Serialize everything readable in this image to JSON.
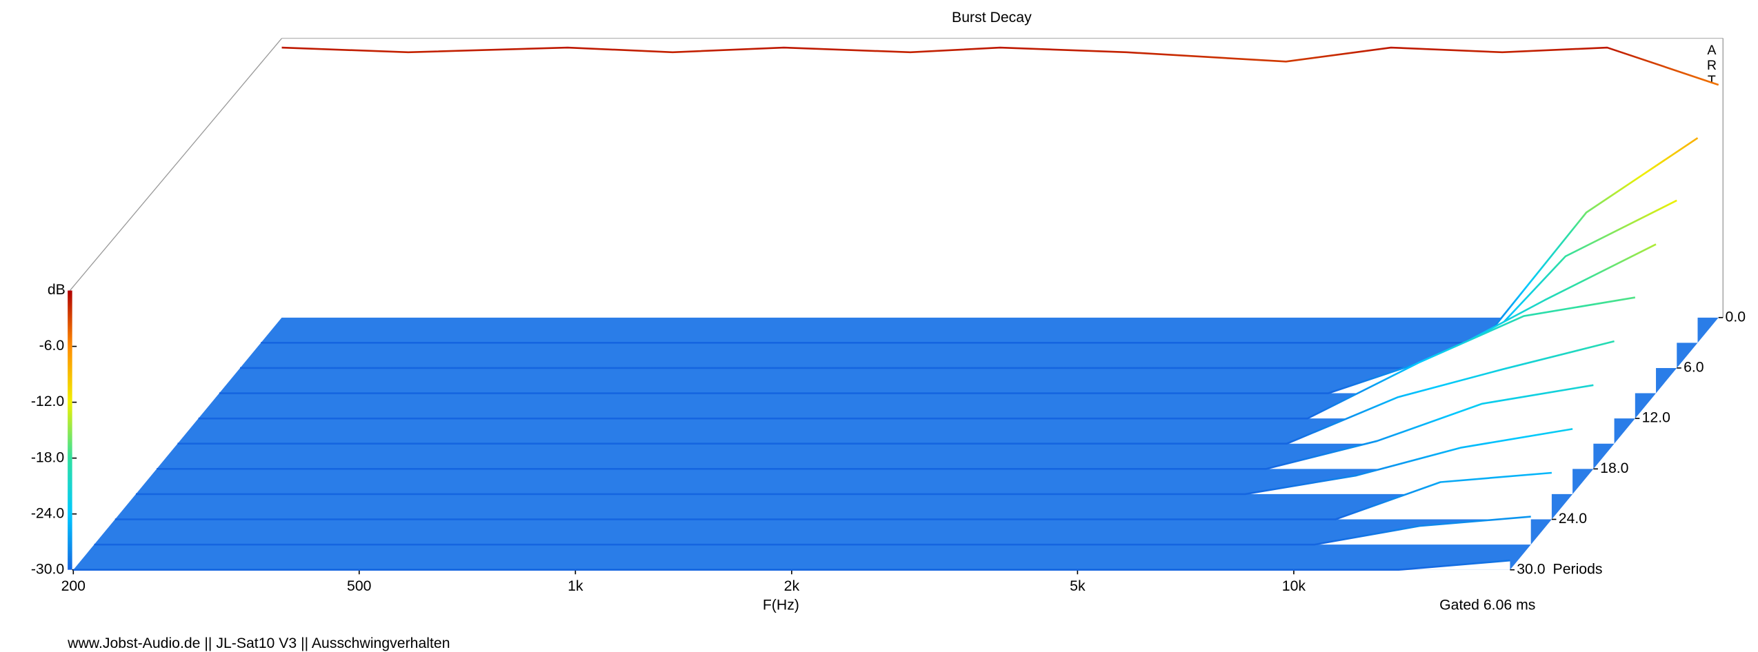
{
  "chart_data": {
    "type": "waterfall",
    "title": "Burst Decay",
    "brand": "ARTA",
    "xlabel": "F(Hz)",
    "zlabel": "dB",
    "ylabel": "Periods",
    "note": "Gated 6.06 ms",
    "footer": "www.Jobst-Audio.de  ||  JL-Sat10 V3  ||  Ausschwingverhalten",
    "xscale": "log",
    "xlim": [
      200,
      20000
    ],
    "xticks": [
      200,
      500,
      {
        "value": 1000,
        "label": "1k"
      },
      {
        "value": 2000,
        "label": "2k"
      },
      {
        "value": 5000,
        "label": "5k"
      },
      {
        "value": 10000,
        "label": "10k"
      }
    ],
    "zlim": [
      -30,
      0
    ],
    "zticks": [
      {
        "value": -6,
        "label": "-6.0"
      },
      {
        "value": -12,
        "label": "-12.0"
      },
      {
        "value": -18,
        "label": "-18.0"
      },
      {
        "value": -24,
        "label": "-24.0"
      },
      {
        "value": -30,
        "label": "-30.0"
      }
    ],
    "ylim": [
      0,
      30
    ],
    "yticks": [
      {
        "value": 0,
        "label": "0.0"
      },
      {
        "value": 6,
        "label": "6.0"
      },
      {
        "value": 12,
        "label": "12.0"
      },
      {
        "value": 18,
        "label": "18.0"
      },
      {
        "value": 24,
        "label": "24.0"
      },
      {
        "value": 30,
        "label": "30.0"
      }
    ],
    "colormap": [
      "#1565e0",
      "#00c8ff",
      "#30e0a0",
      "#f0f000",
      "#ff8c00",
      "#b00000"
    ],
    "floor_color": "#2a7de8",
    "x": [
      200,
      300,
      500,
      700,
      1000,
      1500,
      2000,
      3000,
      5000,
      7000,
      10000,
      14000,
      20000
    ],
    "series": [
      {
        "period": 0,
        "values": [
          -1,
          -1.5,
          -1,
          -1.5,
          -1,
          -1.5,
          -1,
          -1.5,
          -2.5,
          -1,
          -1.5,
          -1,
          -5
        ]
      },
      {
        "period": 3,
        "values": [
          -30,
          -30,
          -30,
          -30,
          -30,
          -30,
          -30,
          -30,
          -30,
          -30,
          -30,
          -16,
          -8
        ]
      },
      {
        "period": 6,
        "values": [
          -30,
          -30,
          -30,
          -30,
          -30,
          -30,
          -30,
          -30,
          -30,
          -30,
          -30,
          -18,
          -12
        ]
      },
      {
        "period": 9,
        "values": [
          -30,
          -30,
          -30,
          -30,
          -30,
          -30,
          -30,
          -30,
          -30,
          -30,
          -26,
          -20,
          -14
        ]
      },
      {
        "period": 12,
        "values": [
          -30,
          -30,
          -30,
          -30,
          -30,
          -30,
          -30,
          -30,
          -30,
          -30,
          -24,
          -19,
          -17
        ]
      },
      {
        "period": 15,
        "values": [
          -30,
          -30,
          -30,
          -30,
          -30,
          -30,
          -30,
          -30,
          -30,
          -30,
          -25,
          -22,
          -19
        ]
      },
      {
        "period": 18,
        "values": [
          -30,
          -30,
          -30,
          -30,
          -30,
          -30,
          -30,
          -30,
          -30,
          -30,
          -27,
          -23,
          -21
        ]
      },
      {
        "period": 21,
        "values": [
          -30,
          -30,
          -30,
          -30,
          -30,
          -30,
          -30,
          -30,
          -30,
          -30,
          -28,
          -25,
          -23
        ]
      },
      {
        "period": 24,
        "values": [
          -30,
          -30,
          -30,
          -30,
          -30,
          -30,
          -30,
          -30,
          -30,
          -30,
          -30,
          -26,
          -25
        ]
      },
      {
        "period": 27,
        "values": [
          -30,
          -30,
          -30,
          -30,
          -30,
          -30,
          -30,
          -30,
          -30,
          -30,
          -30,
          -28,
          -27
        ]
      },
      {
        "period": 30,
        "values": [
          -30,
          -30,
          -30,
          -30,
          -30,
          -30,
          -30,
          -30,
          -30,
          -30,
          -30,
          -30,
          -29
        ]
      }
    ]
  }
}
